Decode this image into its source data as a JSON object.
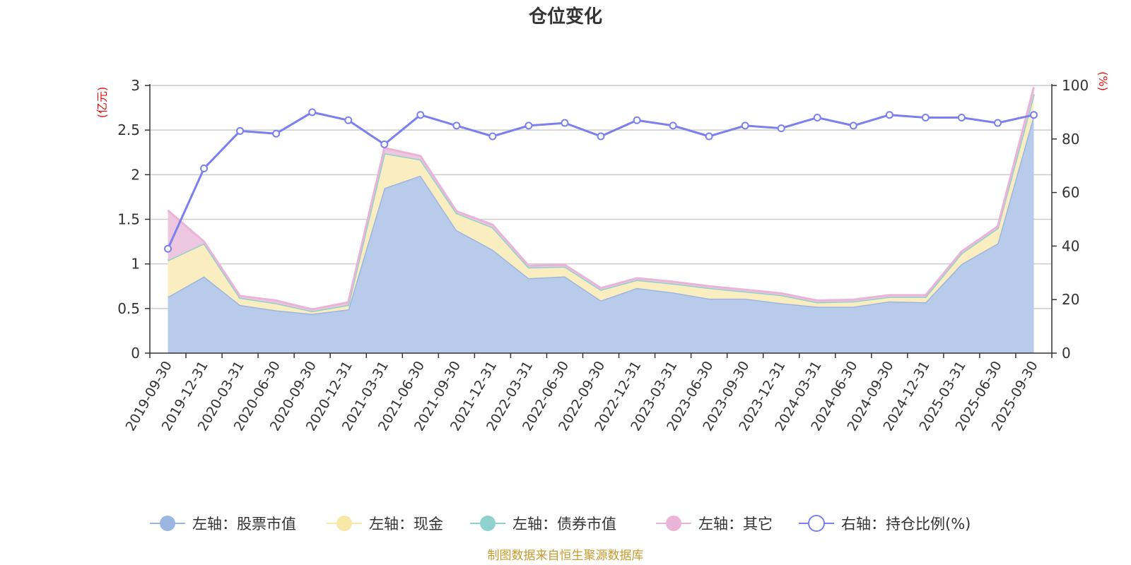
{
  "chart_data": {
    "type": "area",
    "title": "仓位变化",
    "left_axis": {
      "unit": "(亿元)",
      "min": 0,
      "max": 3,
      "ticks": [
        0,
        0.5,
        1,
        1.5,
        2,
        2.5,
        3
      ],
      "tick_labels": [
        "0",
        "0.5",
        "1",
        "1.5",
        "2",
        "2.5",
        "3"
      ]
    },
    "right_axis": {
      "unit": "(%)",
      "min": 0,
      "max": 100,
      "ticks": [
        0,
        20,
        40,
        60,
        80,
        100
      ],
      "tick_labels": [
        "0",
        "20",
        "40",
        "60",
        "80",
        "100"
      ]
    },
    "categories": [
      "2019-09-30",
      "2019-12-31",
      "2020-03-31",
      "2020-06-30",
      "2020-09-30",
      "2020-12-31",
      "2021-03-31",
      "2021-06-30",
      "2021-09-30",
      "2021-12-31",
      "2022-03-31",
      "2022-06-30",
      "2022-09-30",
      "2022-12-31",
      "2023-03-31",
      "2023-06-30",
      "2023-09-30",
      "2023-12-31",
      "2024-03-31",
      "2024-06-30",
      "2024-09-30",
      "2024-12-31",
      "2025-03-31",
      "2025-06-30",
      "2025-09-30"
    ],
    "series": [
      {
        "name": "左轴：股票市值",
        "axis": "left",
        "stack": true,
        "color": "#9bb6e0",
        "fill": "#b8cbea",
        "values": [
          0.63,
          0.86,
          0.54,
          0.48,
          0.44,
          0.49,
          1.85,
          1.99,
          1.38,
          1.16,
          0.84,
          0.86,
          0.59,
          0.73,
          0.68,
          0.61,
          0.61,
          0.56,
          0.52,
          0.52,
          0.58,
          0.57,
          1.0,
          1.23,
          2.67
        ]
      },
      {
        "name": "左轴：现金",
        "axis": "left",
        "stack": true,
        "color": "#f8e8a8",
        "fill": "#faedbf",
        "values": [
          0.41,
          0.37,
          0.08,
          0.08,
          0.03,
          0.05,
          0.39,
          0.18,
          0.19,
          0.25,
          0.12,
          0.11,
          0.12,
          0.09,
          0.1,
          0.12,
          0.08,
          0.09,
          0.05,
          0.06,
          0.05,
          0.06,
          0.12,
          0.17,
          0.23
        ]
      },
      {
        "name": "左轴：债券市值",
        "axis": "left",
        "stack": true,
        "color": "#8fd1cf",
        "fill": "#b9e3e1",
        "values": [
          0,
          0,
          0,
          0,
          0,
          0,
          0,
          0,
          0,
          0,
          0,
          0,
          0,
          0,
          0,
          0,
          0,
          0,
          0,
          0,
          0,
          0,
          0,
          0,
          0
        ]
      },
      {
        "name": "左轴：其它",
        "axis": "left",
        "stack": true,
        "color": "#e9b4d8",
        "fill": "#edc7df",
        "values": [
          0.56,
          0.02,
          0.02,
          0.03,
          0.02,
          0.03,
          0.06,
          0.04,
          0.02,
          0.03,
          0.02,
          0.02,
          0.02,
          0.02,
          0.02,
          0.02,
          0.02,
          0.02,
          0.02,
          0.02,
          0.02,
          0.02,
          0.02,
          0.02,
          0.08
        ]
      },
      {
        "name": "右轴：持仓比例(%)",
        "axis": "right",
        "stack": false,
        "color": "#7c7ff0",
        "values": [
          39,
          69,
          83,
          82,
          90,
          87,
          78,
          89,
          85,
          81,
          85,
          86,
          81,
          87,
          85,
          81,
          85,
          84,
          88,
          85,
          89,
          88,
          88,
          86,
          89
        ]
      }
    ],
    "legend_position": "bottom",
    "grid": true
  },
  "source_text": "制图数据来自恒生聚源数据库"
}
